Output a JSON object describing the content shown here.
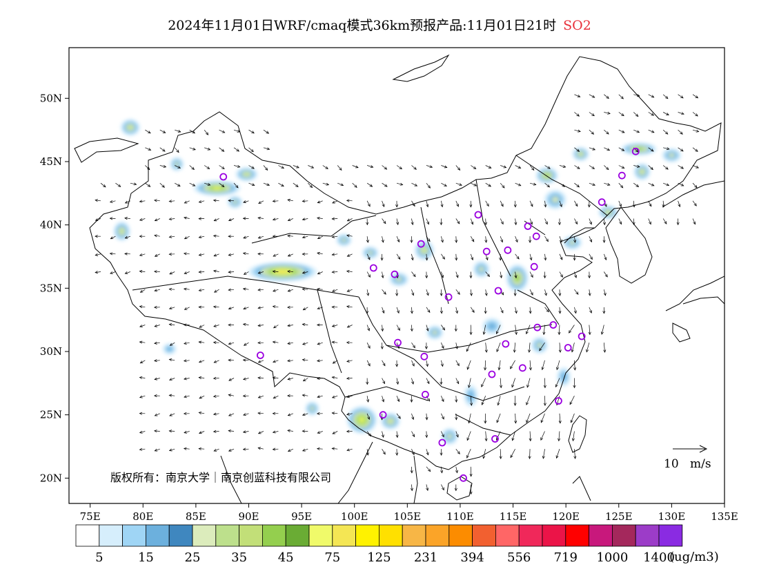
{
  "title": {
    "main": "2024年11月01日WRF/cmaq模式36km预报产品:11月01日21时",
    "species": "SO2"
  },
  "copyright": "版权所有：南京大学｜南京创蓝科技有限公司",
  "wind_scale": {
    "value": "10",
    "unit": "m/s"
  },
  "axes": {
    "lon_labels": [
      "75E",
      "80E",
      "85E",
      "90E",
      "95E",
      "100E",
      "105E",
      "110E",
      "115E",
      "120E",
      "125E",
      "130E",
      "135E"
    ],
    "lon_values": [
      75,
      80,
      85,
      90,
      95,
      100,
      105,
      110,
      115,
      120,
      125,
      130,
      135
    ],
    "lat_labels": [
      "50N",
      "45N",
      "40N",
      "35N",
      "30N",
      "25N",
      "20N"
    ],
    "lat_values": [
      50,
      45,
      40,
      35,
      30,
      25,
      20
    ],
    "lon_range": [
      73,
      135
    ],
    "lat_range": [
      18,
      54
    ]
  },
  "legend": {
    "unit": "(ug/m3)",
    "labels": [
      "5",
      "15",
      "25",
      "35",
      "45",
      "75",
      "125",
      "231",
      "394",
      "556",
      "719",
      "1000",
      "1400"
    ],
    "colors": [
      "#ffffff",
      "#d6eefc",
      "#9fd5f5",
      "#6cb0dd",
      "#3f87bf",
      "#dcecbc",
      "#bde08c",
      "#c2df78",
      "#94cf4e",
      "#6aac34",
      "#f0fa6a",
      "#f4e654",
      "#fff200",
      "#ffe000",
      "#f7b646",
      "#fba428",
      "#fc8c00",
      "#f26030",
      "#ff6666",
      "#f0285a",
      "#eb1448",
      "#ff0000",
      "#c8187c",
      "#a4285c",
      "#9c3cc8",
      "#8a2be2"
    ]
  },
  "stations": [
    [
      87.6,
      43.8
    ],
    [
      91.1,
      29.7
    ],
    [
      101.8,
      36.6
    ],
    [
      103.8,
      36.1
    ],
    [
      104.1,
      30.7
    ],
    [
      106.3,
      38.5
    ],
    [
      106.6,
      29.6
    ],
    [
      106.7,
      26.6
    ],
    [
      102.7,
      25.0
    ],
    [
      108.3,
      22.8
    ],
    [
      110.3,
      20.0
    ],
    [
      108.9,
      34.3
    ],
    [
      111.7,
      40.8
    ],
    [
      112.5,
      37.9
    ],
    [
      113.6,
      34.8
    ],
    [
      114.5,
      38.0
    ],
    [
      117.2,
      39.1
    ],
    [
      116.4,
      39.9
    ],
    [
      117.0,
      36.7
    ],
    [
      117.3,
      31.9
    ],
    [
      118.8,
      32.1
    ],
    [
      120.2,
      30.3
    ],
    [
      121.5,
      31.2
    ],
    [
      119.3,
      26.1
    ],
    [
      115.9,
      28.7
    ],
    [
      114.3,
      30.6
    ],
    [
      113.0,
      28.2
    ],
    [
      113.3,
      23.1
    ],
    [
      123.4,
      41.8
    ],
    [
      125.3,
      43.9
    ],
    [
      126.6,
      45.8
    ]
  ]
}
